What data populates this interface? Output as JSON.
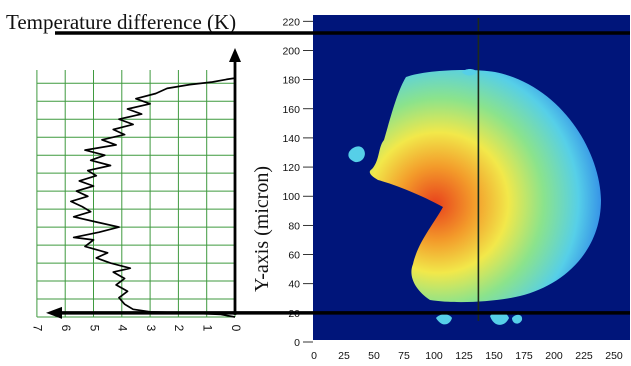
{
  "chart_data": [
    {
      "type": "line",
      "title": "Temperature difference (K)",
      "xlabel": "",
      "ylabel": "",
      "xlim": [
        0,
        7
      ],
      "ylim": [
        20,
        210
      ],
      "x_direction": "reversed",
      "x_ticks": [
        "0",
        "1",
        "2",
        "3",
        "4",
        "5",
        "6",
        "7"
      ],
      "grid": true,
      "series": [
        {
          "points": [
            [
              0.0,
              20
            ],
            [
              0.5,
              22
            ],
            [
              1.5,
              23
            ],
            [
              3.0,
              24
            ],
            [
              3.6,
              26
            ],
            [
              3.9,
              30
            ],
            [
              4.1,
              35
            ],
            [
              3.8,
              40
            ],
            [
              4.2,
              45
            ],
            [
              3.9,
              50
            ],
            [
              4.3,
              55
            ],
            [
              3.7,
              58
            ],
            [
              4.4,
              62
            ],
            [
              4.9,
              66
            ],
            [
              4.5,
              70
            ],
            [
              5.3,
              75
            ],
            [
              5.0,
              80
            ],
            [
              5.7,
              82
            ],
            [
              4.8,
              86
            ],
            [
              4.1,
              90
            ],
            [
              4.9,
              94
            ],
            [
              5.7,
              98
            ],
            [
              5.1,
              102
            ],
            [
              5.4,
              106
            ],
            [
              5.8,
              110
            ],
            [
              5.2,
              114
            ],
            [
              5.6,
              118
            ],
            [
              5.0,
              122
            ],
            [
              5.5,
              126
            ],
            [
              4.9,
              130
            ],
            [
              5.2,
              134
            ],
            [
              4.4,
              138
            ],
            [
              5.1,
              142
            ],
            [
              4.6,
              146
            ],
            [
              5.3,
              150
            ],
            [
              4.2,
              154
            ],
            [
              4.7,
              158
            ],
            [
              3.9,
              162
            ],
            [
              4.3,
              166
            ],
            [
              3.6,
              170
            ],
            [
              4.1,
              174
            ],
            [
              3.3,
              178
            ],
            [
              3.8,
              182
            ],
            [
              3.0,
              186
            ],
            [
              3.5,
              190
            ],
            [
              2.8,
              194
            ],
            [
              2.4,
              198
            ],
            [
              1.6,
              201
            ],
            [
              0.8,
              203
            ],
            [
              0.3,
              205
            ],
            [
              0.0,
              206
            ]
          ]
        }
      ]
    },
    {
      "type": "heatmap",
      "title": "",
      "xlabel": "",
      "ylabel": "Y-axis (micron)",
      "xlim": [
        0,
        250
      ],
      "ylim": [
        0,
        225
      ],
      "x_ticks": [
        "0",
        "25",
        "50",
        "75",
        "100",
        "125",
        "150",
        "175",
        "200",
        "225",
        "250"
      ],
      "y_ticks": [
        "0",
        "20",
        "40",
        "60",
        "80",
        "100",
        "120",
        "140",
        "160",
        "180",
        "200",
        "220"
      ],
      "crosshair": {
        "x": 137,
        "y_top": 212,
        "y_bottom": 20
      },
      "colors": {
        "background": "#00157a",
        "blue": "#2a7be6",
        "cyan": "#56cfe8",
        "green": "#8be38c",
        "yellow": "#f2e84a",
        "orange": "#f39a2a",
        "red": "#e8401c"
      }
    }
  ]
}
